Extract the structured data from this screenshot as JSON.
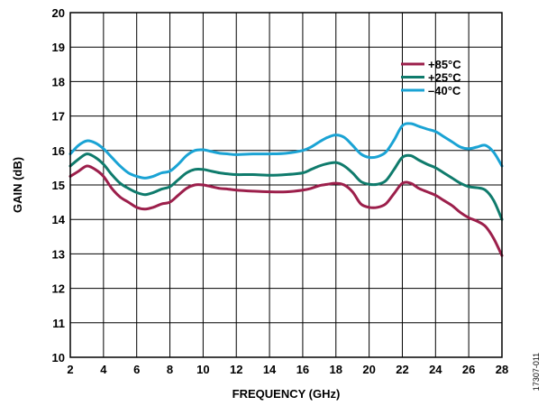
{
  "chart_data": {
    "type": "line",
    "title": "",
    "xlabel": "FREQUENCY (GHz)",
    "ylabel": "GAIN (dB)",
    "xlim": [
      2,
      28
    ],
    "ylim": [
      10,
      20
    ],
    "xticks": [
      2,
      4,
      6,
      8,
      10,
      12,
      14,
      16,
      18,
      20,
      22,
      24,
      26,
      28
    ],
    "yticks": [
      10,
      11,
      12,
      13,
      14,
      15,
      16,
      17,
      18,
      19,
      20
    ],
    "grid": true,
    "legend_position": "top-right",
    "figure_id": "17307-011",
    "series": [
      {
        "name": "+85°C",
        "color": "#9c1f4b",
        "x": [
          2,
          2.5,
          3,
          3.5,
          4,
          4.5,
          5,
          5.5,
          6,
          6.5,
          7,
          7.5,
          8,
          8.5,
          9,
          9.5,
          10,
          10.5,
          11,
          11.5,
          12,
          13,
          14,
          15,
          16,
          16.5,
          17,
          17.5,
          18,
          18.5,
          19,
          19.5,
          20,
          20.5,
          21,
          21.5,
          22,
          22.5,
          23,
          23.5,
          24,
          24.5,
          25,
          25.5,
          26,
          26.5,
          27,
          27.5,
          28
        ],
        "y": [
          15.25,
          15.4,
          15.55,
          15.45,
          15.25,
          14.9,
          14.65,
          14.5,
          14.35,
          14.3,
          14.35,
          14.45,
          14.5,
          14.7,
          14.9,
          15.0,
          15.0,
          14.95,
          14.9,
          14.88,
          14.85,
          14.82,
          14.8,
          14.8,
          14.85,
          14.9,
          14.98,
          15.02,
          15.05,
          15.0,
          14.8,
          14.45,
          14.35,
          14.35,
          14.45,
          14.75,
          15.05,
          15.05,
          14.9,
          14.8,
          14.7,
          14.55,
          14.4,
          14.2,
          14.05,
          13.95,
          13.8,
          13.45,
          12.95
        ]
      },
      {
        "name": "+25°C",
        "color": "#0f7b6c",
        "x": [
          2,
          2.5,
          3,
          3.5,
          4,
          4.5,
          5,
          5.5,
          6,
          6.5,
          7,
          7.5,
          8,
          8.5,
          9,
          9.5,
          10,
          10.5,
          11,
          11.5,
          12,
          13,
          14,
          15,
          16,
          16.5,
          17,
          17.5,
          18,
          18.5,
          19,
          19.5,
          20,
          20.5,
          21,
          21.5,
          22,
          22.5,
          23,
          23.5,
          24,
          24.5,
          25,
          25.5,
          26,
          26.5,
          27,
          27.5,
          28
        ],
        "y": [
          15.55,
          15.75,
          15.9,
          15.8,
          15.6,
          15.3,
          15.05,
          14.9,
          14.78,
          14.72,
          14.78,
          14.88,
          14.95,
          15.15,
          15.35,
          15.45,
          15.45,
          15.4,
          15.35,
          15.32,
          15.3,
          15.3,
          15.28,
          15.3,
          15.35,
          15.45,
          15.55,
          15.62,
          15.65,
          15.55,
          15.35,
          15.1,
          15.02,
          15.02,
          15.12,
          15.45,
          15.8,
          15.85,
          15.72,
          15.6,
          15.5,
          15.35,
          15.2,
          15.05,
          14.95,
          14.92,
          14.85,
          14.55,
          14.0
        ]
      },
      {
        "name": "–40°C",
        "color": "#1aa3d4",
        "x": [
          2,
          2.5,
          3,
          3.5,
          4,
          4.5,
          5,
          5.5,
          6,
          6.5,
          7,
          7.5,
          8,
          8.5,
          9,
          9.5,
          10,
          10.5,
          11,
          11.5,
          12,
          13,
          14,
          15,
          16,
          16.5,
          17,
          17.5,
          18,
          18.5,
          19,
          19.5,
          20,
          20.5,
          21,
          21.5,
          22,
          22.5,
          23,
          23.5,
          24,
          24.5,
          25,
          25.5,
          26,
          26.5,
          27,
          27.5,
          28
        ],
        "y": [
          15.9,
          16.15,
          16.28,
          16.22,
          16.05,
          15.8,
          15.55,
          15.35,
          15.25,
          15.2,
          15.25,
          15.35,
          15.4,
          15.6,
          15.85,
          16.0,
          16.02,
          15.97,
          15.92,
          15.9,
          15.88,
          15.9,
          15.9,
          15.92,
          16.0,
          16.1,
          16.25,
          16.38,
          16.45,
          16.38,
          16.15,
          15.9,
          15.8,
          15.82,
          15.95,
          16.3,
          16.72,
          16.78,
          16.7,
          16.62,
          16.55,
          16.4,
          16.25,
          16.1,
          16.05,
          16.1,
          16.15,
          15.95,
          15.55
        ]
      }
    ]
  }
}
